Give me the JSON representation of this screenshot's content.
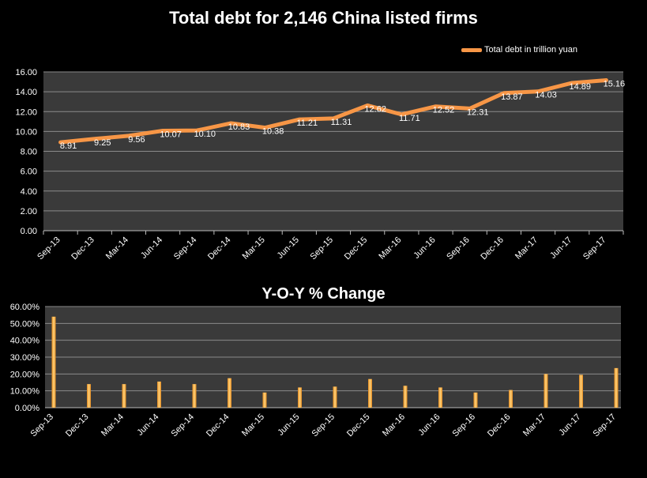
{
  "chart_data": [
    {
      "type": "line",
      "title": "Total debt for 2,146 China listed firms",
      "categories": [
        "Sep-13",
        "Dec-13",
        "Mar-14",
        "Jun-14",
        "Sep-14",
        "Dec-14",
        "Mar-15",
        "Jun-15",
        "Sep-15",
        "Dec-15",
        "Mar-16",
        "Jun-16",
        "Sep-16",
        "Dec-16",
        "Mar-17",
        "Jun-17",
        "Sep-17"
      ],
      "series": [
        {
          "name": "Total debt in trillion yuan",
          "values": [
            8.91,
            9.25,
            9.56,
            10.07,
            10.1,
            10.83,
            10.38,
            11.21,
            11.31,
            12.62,
            11.71,
            12.52,
            12.31,
            13.87,
            14.03,
            14.89,
            15.16
          ],
          "labels": [
            "8.91",
            "9.25",
            "9.56",
            "10.07",
            "10.10",
            "10.83",
            "10.38",
            "11.21",
            "11.31",
            "12.62",
            "11.71",
            "12.52",
            "12.31",
            "13.87",
            "14.03",
            "14.89",
            "15.16"
          ]
        }
      ],
      "ylim": [
        0,
        16
      ],
      "yticks": [
        "0.00",
        "2.00",
        "4.00",
        "6.00",
        "8.00",
        "10.00",
        "12.00",
        "14.00",
        "16.00"
      ],
      "xlabel": "",
      "ylabel": "",
      "grid": true,
      "legend": "top-right",
      "colors": {
        "line": "#f79646",
        "plot_bg": "#3a3a3a",
        "grid": "#8a8a8a"
      }
    },
    {
      "type": "bar",
      "title": "Y-O-Y % Change",
      "categories": [
        "Sep-13",
        "Dec-13",
        "Mar-14",
        "Jun-14",
        "Sep-14",
        "Dec-14",
        "Mar-15",
        "Jun-15",
        "Sep-15",
        "Dec-15",
        "Mar-16",
        "Jun-16",
        "Sep-16",
        "Dec-16",
        "Mar-17",
        "Jun-17",
        "Sep-17"
      ],
      "series": [
        {
          "values": [
            54,
            14,
            14,
            15.5,
            14,
            17.5,
            9,
            12,
            12.5,
            17,
            13,
            12,
            9,
            10.5,
            20,
            19.5,
            23.5
          ]
        }
      ],
      "ylim": [
        0,
        60
      ],
      "yticks": [
        "0.00%",
        "10.00%",
        "20.00%",
        "30.00%",
        "40.00%",
        "50.00%",
        "60.00%"
      ],
      "xlabel": "",
      "ylabel": "",
      "grid": true,
      "colors": {
        "bar": "#e38a1f",
        "bar_highlight": "#ffd27a",
        "plot_bg": "#3a3a3a",
        "grid": "#8a8a8a"
      }
    }
  ]
}
